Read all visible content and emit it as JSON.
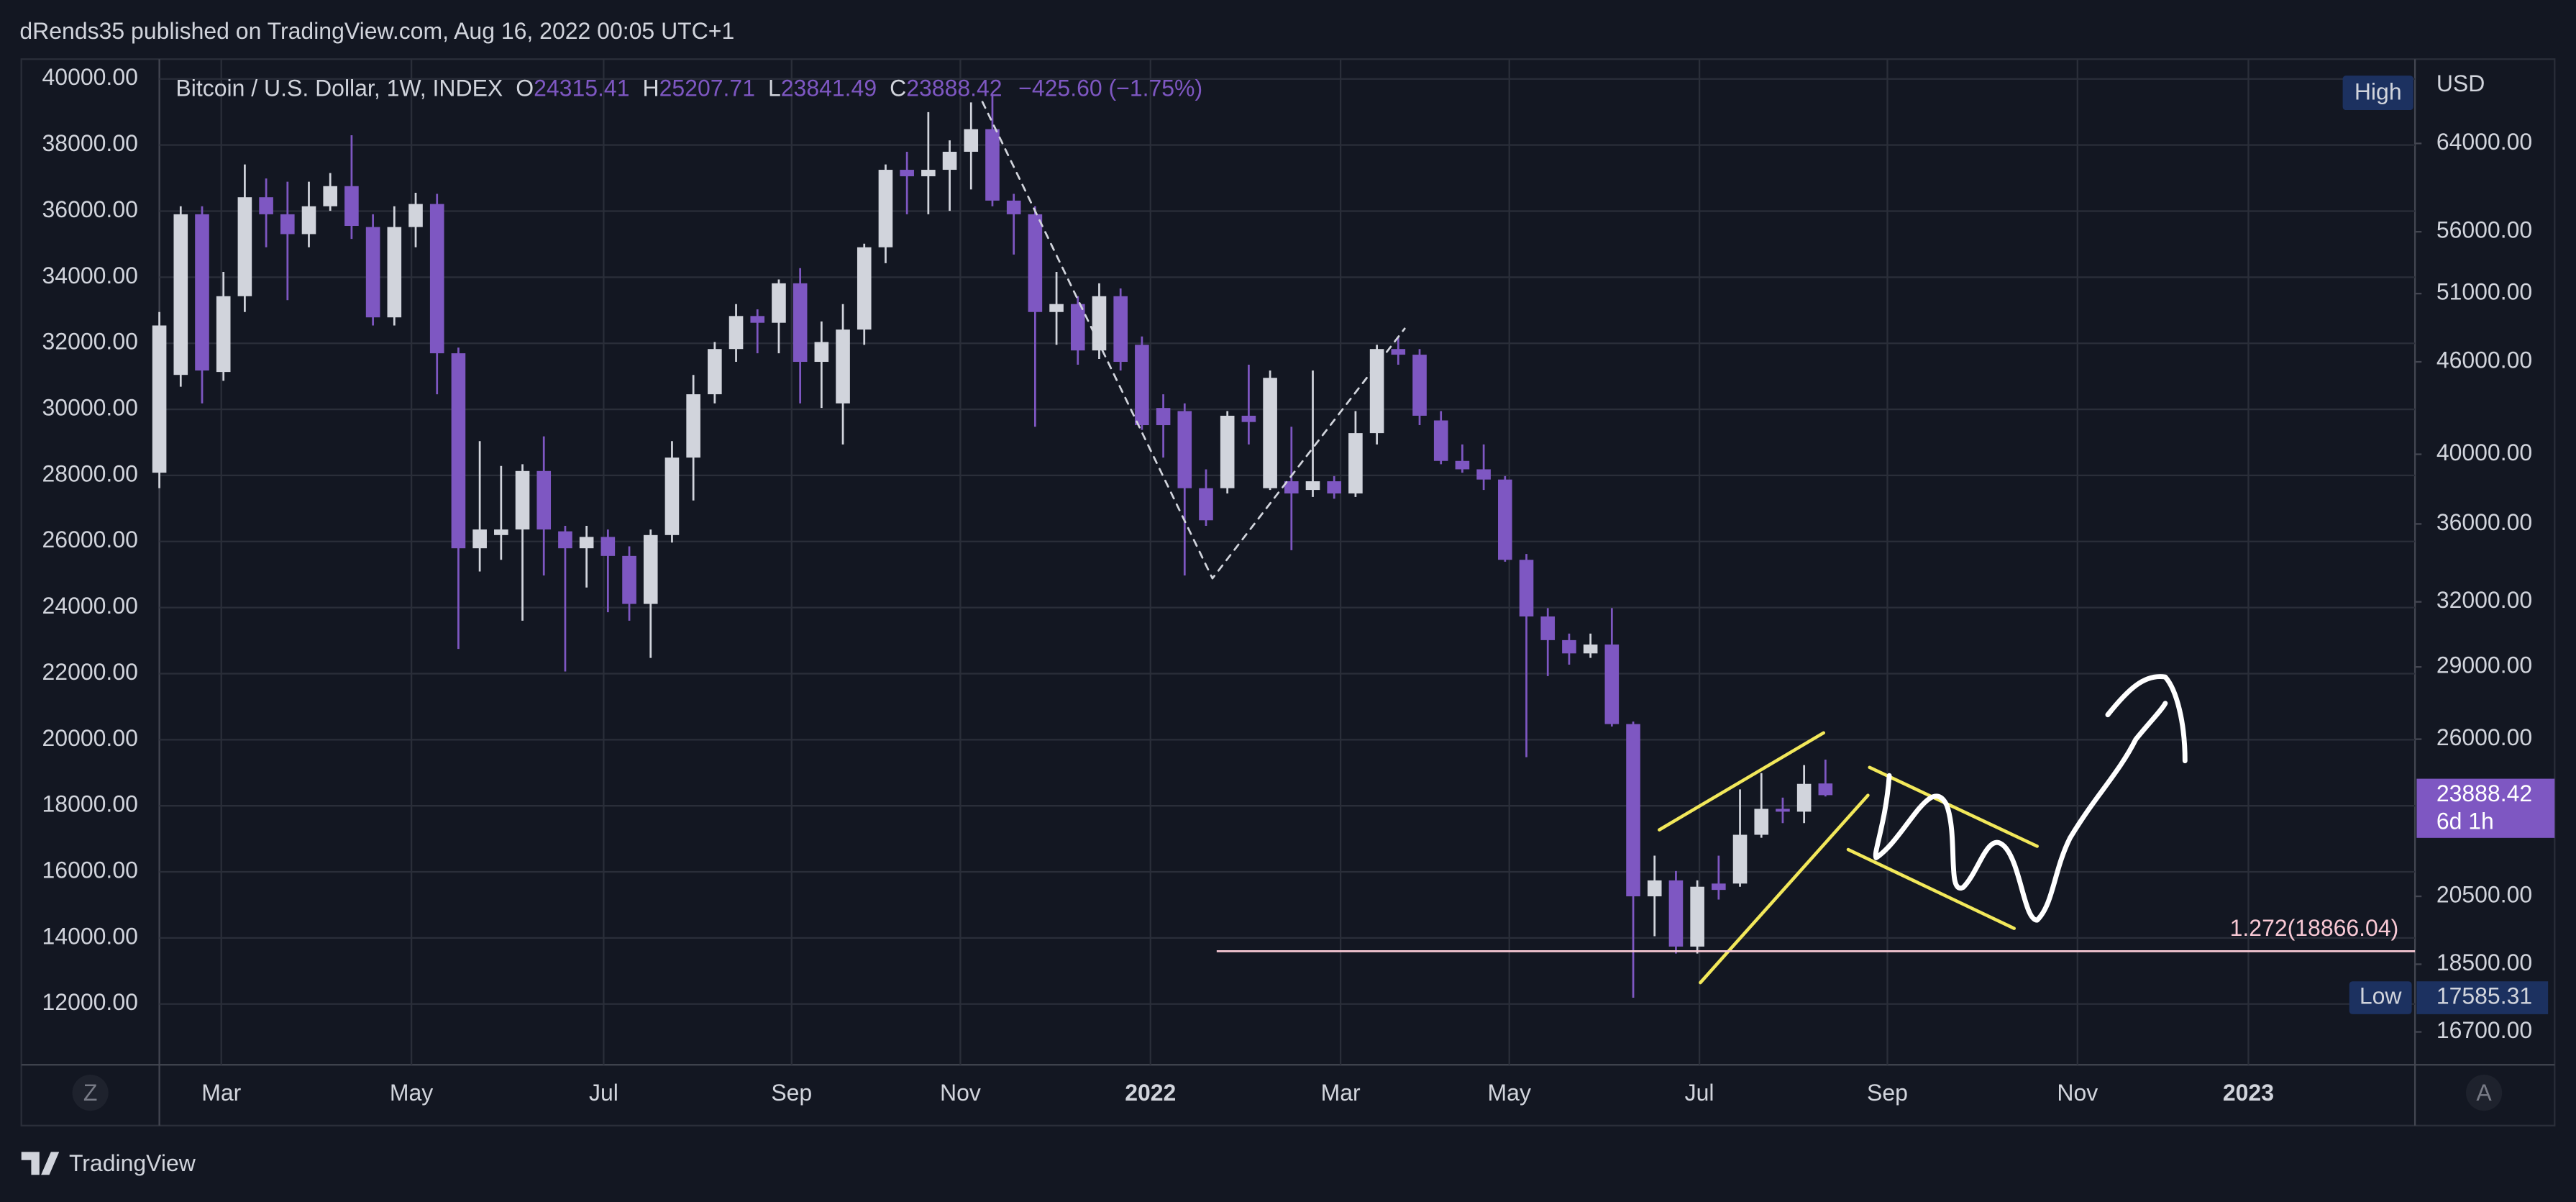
{
  "header": {
    "published": "dRends35 published on TradingView.com, Aug 16, 2022 00:05 UTC+1",
    "logo": "TradingView"
  },
  "chart_data": {
    "type": "candlestick",
    "title": "Bitcoin / U.S. Dollar, 1W, INDEX",
    "ohlc_labels": [
      "O",
      "H",
      "L",
      "C"
    ],
    "change": "−425.60 (−1.75%)",
    "currency": "USD",
    "countdown": "6d 1h",
    "high_label": "High",
    "low_label": "Low",
    "scale_buttons": [
      "Z",
      "A"
    ],
    "up_color": "#d1d4dc",
    "down_color": "#7e57c2",
    "grid": true,
    "xlim": [
      0,
      105.6
    ],
    "xticks": [
      {
        "value": 2.9,
        "label": "Mar"
      },
      {
        "value": 11.8,
        "label": "May"
      },
      {
        "value": 20.8,
        "label": "Jul"
      },
      {
        "value": 29.6,
        "label": "Sep"
      },
      {
        "value": 37.5,
        "label": "Nov"
      },
      {
        "value": 46.4,
        "label": "2022"
      },
      {
        "value": 55.3,
        "label": "Mar"
      },
      {
        "value": 63.2,
        "label": "May"
      },
      {
        "value": 72.1,
        "label": "Jul"
      },
      {
        "value": 80.9,
        "label": "Sep"
      },
      {
        "value": 89.8,
        "label": "Nov"
      },
      {
        "value": 97.8,
        "label": "2023"
      }
    ],
    "ylim": [
      10160,
      40600
    ],
    "yticks": [
      {
        "value": 40000,
        "label": "40000.00"
      },
      {
        "value": 38000,
        "label": "38000.00"
      },
      {
        "value": 36000,
        "label": "36000.00"
      },
      {
        "value": 34000,
        "label": "34000.00"
      },
      {
        "value": 32000,
        "label": "32000.00"
      },
      {
        "value": 30000,
        "label": "30000.00"
      },
      {
        "value": 28000,
        "label": "28000.00"
      },
      {
        "value": 26000,
        "label": "26000.00"
      },
      {
        "value": 24000,
        "label": "24000.00"
      },
      {
        "value": 22000,
        "label": "22000.00"
      },
      {
        "value": 20000,
        "label": "20000.00"
      },
      {
        "value": 18000,
        "label": "18000.00"
      },
      {
        "value": 16000,
        "label": "16000.00"
      },
      {
        "value": 14000,
        "label": "14000.00"
      },
      {
        "value": 12000,
        "label": "12000.00"
      }
    ],
    "y2log": true,
    "y2lim": [
      15890,
      72700
    ],
    "y2ticks": [
      {
        "value": 64000,
        "label": "64000.00"
      },
      {
        "value": 56000,
        "label": "56000.00"
      },
      {
        "value": 51000,
        "label": "51000.00"
      },
      {
        "value": 46000,
        "label": "46000.00"
      },
      {
        "value": 40000,
        "label": "40000.00"
      },
      {
        "value": 36000,
        "label": "36000.00"
      },
      {
        "value": 32000,
        "label": "32000.00"
      },
      {
        "value": 29000,
        "label": "29000.00"
      },
      {
        "value": 26000,
        "label": "26000.00"
      },
      {
        "value": 20500,
        "label": "20500.00"
      },
      {
        "value": 18500,
        "label": "18500.00"
      },
      {
        "value": 16700,
        "label": "16700.00"
      }
    ],
    "axis": "y2",
    "open": [
      38900,
      45100,
      57500,
      45300,
      50800,
      59000,
      57500,
      55800,
      58200,
      60000,
      56400,
      49200,
      56400,
      58400,
      46600,
      34700,
      35400,
      35700,
      39000,
      35600,
      34700,
      35300,
      34300,
      31900,
      35400,
      39800,
      43800,
      46900,
      49300,
      48800,
      51800,
      46000,
      43200,
      48300,
      54700,
      61500,
      60900,
      61500,
      63200,
      65400,
      58700,
      57500,
      49600,
      50200,
      46800,
      50800,
      47200,
      42900,
      42700,
      38000,
      38000,
      42400,
      38000,
      38400,
      37900,
      38400,
      37700,
      41300,
      46900,
      46500,
      42100,
      39600,
      39100,
      38500,
      34100,
      31300,
      30200,
      29600,
      30000,
      26600,
      20500,
      21000,
      19000,
      20900,
      20900,
      22500,
      23400,
      23300,
      24315.41
    ],
    "high": [
      49600,
      58200,
      58200,
      52700,
      62000,
      60700,
      60400,
      60400,
      61200,
      64800,
      57500,
      58200,
      59400,
      59300,
      47000,
      40800,
      39300,
      39400,
      41100,
      35900,
      35900,
      35700,
      34800,
      35700,
      40800,
      45100,
      47400,
      50200,
      49800,
      52100,
      53000,
      48900,
      50200,
      55000,
      62000,
      63200,
      67100,
      64300,
      68100,
      68800,
      59300,
      58200,
      52700,
      50800,
      51800,
      51400,
      47800,
      43800,
      43200,
      39100,
      42700,
      45800,
      45400,
      41700,
      45400,
      38700,
      42700,
      47200,
      47800,
      46900,
      42700,
      40600,
      40600,
      38700,
      34400,
      31700,
      30500,
      30500,
      31700,
      26700,
      21800,
      21300,
      21000,
      21800,
      24100,
      24700,
      23800,
      25000,
      25207.71
    ],
    "low": [
      38000,
      44300,
      43200,
      44700,
      49600,
      54700,
      50500,
      54700,
      57800,
      55400,
      48600,
      48600,
      54700,
      43800,
      29800,
      33500,
      34100,
      31100,
      33300,
      28800,
      32700,
      31500,
      31100,
      29400,
      35000,
      37300,
      43200,
      46000,
      46600,
      46600,
      43200,
      42900,
      40600,
      47200,
      53400,
      57500,
      57500,
      57800,
      59700,
      58200,
      54100,
      41700,
      47200,
      45800,
      46200,
      45400,
      41500,
      39800,
      33300,
      35900,
      37700,
      40600,
      37900,
      34600,
      37500,
      37400,
      37500,
      40600,
      45800,
      41800,
      39400,
      38900,
      37900,
      34000,
      25300,
      28600,
      29100,
      29400,
      26500,
      17585.31,
      19300,
      18800,
      18800,
      20400,
      20800,
      22400,
      22900,
      22900,
      23841.49
    ],
    "close": [
      48600,
      57500,
      45400,
      50800,
      59000,
      57500,
      55800,
      58200,
      60000,
      56500,
      49200,
      56400,
      58400,
      46600,
      34700,
      35700,
      35700,
      39000,
      35700,
      34700,
      35300,
      34300,
      31900,
      35400,
      39800,
      43800,
      46900,
      49300,
      48800,
      51800,
      46000,
      47400,
      48300,
      54700,
      61500,
      60900,
      61500,
      63200,
      65400,
      58700,
      57500,
      49600,
      50200,
      46800,
      50800,
      46000,
      41800,
      41800,
      38000,
      36200,
      42400,
      42000,
      44900,
      37700,
      38400,
      37700,
      41300,
      46900,
      46500,
      42400,
      39600,
      39100,
      38500,
      34100,
      31300,
      30200,
      29600,
      30000,
      26600,
      20500,
      21000,
      19000,
      20800,
      20700,
      22500,
      23400,
      23300,
      24300,
      23888.42
    ],
    "fib": {
      "label": "1.272(18866.04)",
      "value": 18866.04,
      "color": "#f8c8d4",
      "start": 49.5
    }
  }
}
